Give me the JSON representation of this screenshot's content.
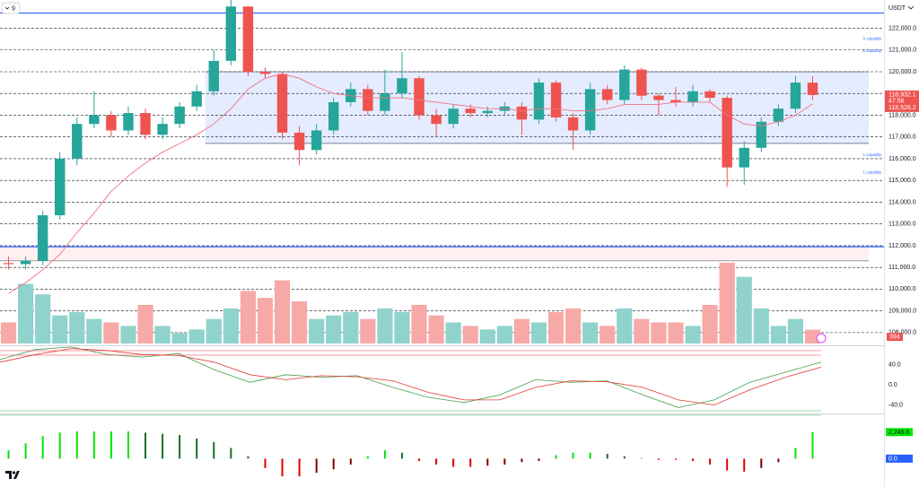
{
  "symbol_interval": "9",
  "chart_data": [
    {
      "type": "candlestick",
      "currency": "USDT",
      "categories": [
        null,
        null,
        null,
        null,
        null,
        null,
        null,
        null,
        null,
        null,
        null,
        null,
        null,
        null,
        null,
        null,
        null,
        null,
        null,
        null,
        null,
        null,
        null,
        null,
        null,
        null,
        null,
        null,
        null,
        null,
        null,
        null,
        null,
        null,
        null,
        null,
        null,
        null,
        null,
        null,
        null,
        null,
        null,
        null,
        null,
        null,
        null,
        null
      ],
      "open": [
        111200,
        111150,
        111300,
        113400,
        116000,
        117600,
        118000,
        117300,
        118100,
        117100,
        117600,
        118400,
        119100,
        120500,
        123000,
        120000,
        119900,
        117200,
        116400,
        117300,
        118600,
        119200,
        118200,
        119000,
        119700,
        118000,
        117600,
        118300,
        118100,
        118200,
        118400,
        117800,
        119500,
        117900,
        117300,
        119200,
        118700,
        120100,
        118900,
        118700,
        118600,
        119100,
        118800,
        115600,
        116500,
        117700,
        118300,
        119500
      ],
      "high": [
        111500,
        111500,
        113600,
        116300,
        117900,
        119100,
        118200,
        118400,
        118300,
        117900,
        118600,
        119400,
        121000,
        123300,
        123000,
        120200,
        120000,
        117500,
        117600,
        118800,
        119500,
        119400,
        120100,
        120900,
        119800,
        118300,
        118500,
        118500,
        118400,
        118600,
        118600,
        119700,
        119600,
        118100,
        119500,
        119400,
        120300,
        120200,
        119000,
        119300,
        119400,
        119200,
        118900,
        116800,
        117900,
        118500,
        119800,
        119800
      ],
      "low": [
        110900,
        110900,
        111100,
        113200,
        115700,
        117400,
        117000,
        117100,
        116900,
        116900,
        117400,
        118200,
        118900,
        120300,
        119800,
        119700,
        116900,
        115700,
        116200,
        117100,
        118400,
        118000,
        118000,
        118800,
        117800,
        117000,
        117400,
        117900,
        117900,
        118000,
        117100,
        117600,
        117700,
        116400,
        117100,
        118500,
        118500,
        118700,
        118000,
        118400,
        118400,
        118600,
        114700,
        114800,
        116300,
        117500,
        118100,
        118700
      ],
      "close": [
        111150,
        111300,
        113400,
        116000,
        117600,
        118000,
        117300,
        118100,
        117100,
        117600,
        118400,
        119100,
        120500,
        123000,
        120000,
        119900,
        117200,
        116400,
        117300,
        118600,
        119200,
        118200,
        119000,
        119700,
        118000,
        117600,
        118300,
        118100,
        118200,
        118400,
        117800,
        119500,
        117900,
        117300,
        119200,
        118700,
        120100,
        118900,
        118700,
        118600,
        119100,
        118800,
        115600,
        116500,
        117700,
        118300,
        119500,
        118932.1
      ],
      "up_color": "#26a69a",
      "down_color": "#ef5350",
      "ma": {
        "color": "#f0737e",
        "values": [
          109800,
          110300,
          110900,
          111600,
          112600,
          113500,
          114500,
          115200,
          115800,
          116300,
          116700,
          117100,
          117600,
          118300,
          119200,
          119700,
          119900,
          119700,
          119300,
          119000,
          118900,
          118800,
          118800,
          118800,
          118700,
          118600,
          118500,
          118400,
          118300,
          118300,
          118200,
          118300,
          118300,
          118200,
          118200,
          118300,
          118500,
          118500,
          118500,
          118600,
          118600,
          118600,
          118000,
          117600,
          117500,
          117700,
          118000,
          118526.2
        ]
      },
      "ma_marker": {
        "value": 118526.2,
        "label": "118,526.2"
      },
      "ma_early_color": "#2e9e4f",
      "volume": {
        "up_color": "#8fd3cc",
        "down_color": "#f7a9a7",
        "values": [
          600,
          1700,
          1400,
          800,
          900,
          700,
          600,
          500,
          1100,
          500,
          300,
          400,
          700,
          1000,
          1500,
          1300,
          1800,
          1200,
          700,
          800,
          900,
          700,
          1000,
          900,
          1100,
          800,
          600,
          500,
          400,
          500,
          700,
          600,
          900,
          1000,
          600,
          500,
          1000,
          700,
          600,
          600,
          500,
          1100,
          2300,
          1900,
          1000,
          500,
          700,
          394
        ]
      },
      "last_price_marker": {
        "value": 118932.1,
        "label": "118,932.1"
      },
      "countdown": "47:56",
      "ylim": [
        107500,
        123300
      ],
      "yticks": [
        {
          "value": 108000,
          "label": "108,000.0"
        },
        {
          "value": 109000,
          "label": "109,000.0"
        },
        {
          "value": 110000,
          "label": "110,000.0"
        },
        {
          "value": 111000,
          "label": "111,000.0"
        },
        {
          "value": 112000,
          "label": "112,000.0"
        },
        {
          "value": 113000,
          "label": "113,000.0"
        },
        {
          "value": 114000,
          "label": "114,000.0"
        },
        {
          "value": 115000,
          "label": "115,000.0"
        },
        {
          "value": 116000,
          "label": "116,000.0"
        },
        {
          "value": 117000,
          "label": "117,000.0"
        },
        {
          "value": 118000,
          "label": "118,000.0"
        },
        {
          "value": 119000,
          "label": "119,000.0"
        },
        {
          "value": 120000,
          "label": "120,000.0"
        },
        {
          "value": 121000,
          "label": "121,000.0"
        },
        {
          "value": 122000,
          "label": "122,000.0"
        }
      ],
      "grid": true,
      "levels": [
        {
          "value": 122700,
          "color": "#2962ff"
        },
        {
          "value": 111950,
          "color": "#2962ff"
        }
      ],
      "zones": [
        {
          "from": 116700,
          "to": 120000,
          "from_category": 12,
          "color": "rgba(41,98,255,0.12)"
        },
        {
          "from": 111300,
          "to": 111950,
          "from_category": 0,
          "color": "rgba(242,54,69,0.08)"
        }
      ],
      "annotations": [
        {
          "text": "S Liquidity",
          "value": 121350
        },
        {
          "text": "S Liquidity",
          "value": 120800
        },
        {
          "text": "L Liquidity",
          "value": 116000
        },
        {
          "text": "L Liquidity",
          "value": 115200
        }
      ]
    },
    {
      "type": "line",
      "categories": [
        null,
        null,
        null,
        null,
        null,
        null,
        null,
        null,
        null,
        null,
        null,
        null,
        null,
        null,
        null,
        null,
        null,
        null,
        null,
        null,
        null,
        null,
        null,
        null
      ],
      "series": [
        {
          "color": "#43a047",
          "values": [
            50,
            70,
            75,
            60,
            55,
            62,
            30,
            5,
            20,
            15,
            18,
            -5,
            -25,
            -35,
            -20,
            10,
            5,
            8,
            -20,
            -45,
            -30,
            5,
            25,
            45
          ]
        },
        {
          "color": "#e53935",
          "values": [
            45,
            60,
            72,
            68,
            60,
            58,
            45,
            20,
            10,
            18,
            16,
            8,
            -15,
            -30,
            -30,
            -5,
            8,
            6,
            -5,
            -30,
            -40,
            -10,
            15,
            35
          ]
        }
      ],
      "ylim": [
        -55,
        73
      ],
      "yticks": [
        {
          "value": 40,
          "label": "40.0"
        },
        {
          "value": 0,
          "label": "0.0"
        },
        {
          "value": -40,
          "label": "-40.0"
        }
      ]
    },
    {
      "type": "bar",
      "categories": [
        null,
        null,
        null,
        null,
        null,
        null,
        null,
        null,
        null,
        null,
        null,
        null,
        null,
        null,
        null,
        null,
        null,
        null,
        null,
        null,
        null,
        null,
        null,
        null,
        null,
        null,
        null,
        null,
        null,
        null,
        null,
        null,
        null,
        null,
        null,
        null,
        null,
        null,
        null,
        null,
        null,
        null,
        null,
        null,
        null,
        null,
        null,
        null
      ],
      "values": [
        700,
        1300,
        1900,
        2200,
        2300,
        2300,
        2300,
        2300,
        2200,
        2100,
        2000,
        1700,
        1400,
        900,
        200,
        -800,
        -1500,
        -1500,
        -1200,
        -900,
        -500,
        200,
        700,
        500,
        -200,
        -500,
        -700,
        -700,
        -600,
        -500,
        -300,
        -200,
        300,
        500,
        500,
        400,
        200,
        50,
        -100,
        -100,
        -200,
        -500,
        -1000,
        -1100,
        -800,
        -300,
        900,
        2245.6
      ],
      "colors": [
        "#00e600",
        "#1b6e20",
        "#e00000",
        "#7f0000"
      ],
      "ylim": [
        -2400,
        3670
      ],
      "yticks": [
        {
          "value": 2245.6,
          "label": "2,245.6"
        },
        {
          "value": 0,
          "label": "0.0"
        }
      ]
    }
  ]
}
